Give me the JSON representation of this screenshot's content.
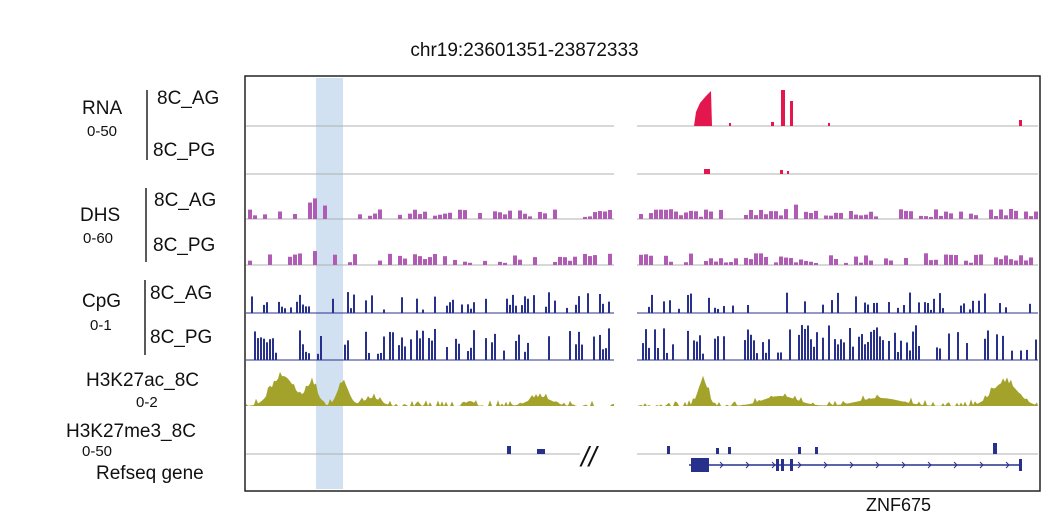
{
  "title": "chr19:23601351-23872333",
  "groups": [
    {
      "id": "rna",
      "name": "RNA",
      "range": "0-50",
      "tracks": [
        "8C_AG",
        "8C_PG"
      ]
    },
    {
      "id": "dhs",
      "name": "DHS",
      "range": "0-60",
      "tracks": [
        "8C_AG",
        "8C_PG"
      ]
    },
    {
      "id": "cpg",
      "name": "CpG",
      "range": "0-1",
      "tracks": [
        "8C_AG",
        "8C_PG"
      ]
    }
  ],
  "h3k27ac": {
    "name": "H3K27ac_8C",
    "range": "0-2"
  },
  "h3k27me3": {
    "name": "H3K27me3_8C",
    "range": "0-50"
  },
  "refseq_label": "Refseq gene",
  "gene_name": "ZNF675",
  "break_mark": "//",
  "colors": {
    "rna": "#e3174d",
    "dhs": "#b05bb4",
    "cpg": "#27318c",
    "h3k27ac": "#a3a22a",
    "h3k27me3": "#27318c",
    "gene": "#27318c",
    "highlight": "#c9dcef",
    "baseline": "#b0b0b0"
  }
}
